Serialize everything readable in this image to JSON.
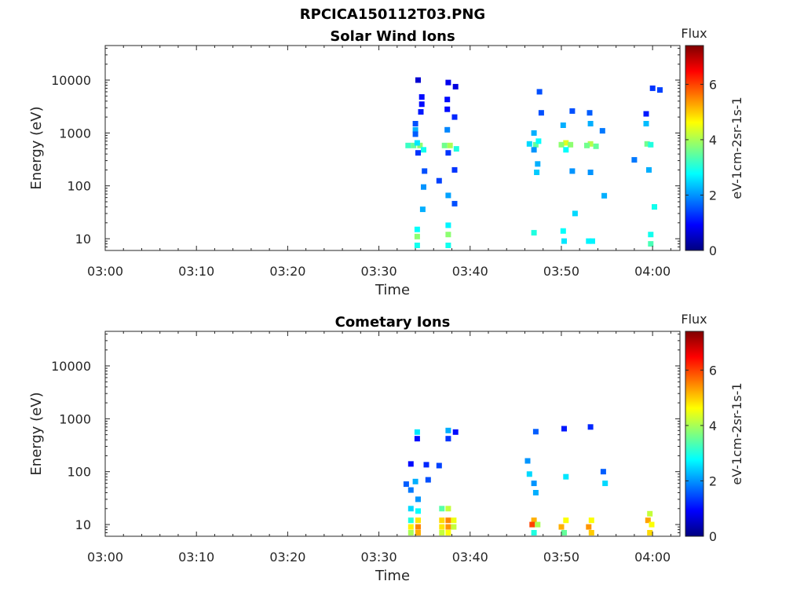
{
  "figure": {
    "title": "RPCICA150112T03.PNG"
  },
  "colors": {
    "colormap": [
      "#00007f",
      "#0000ff",
      "#007fff",
      "#00ffff",
      "#7fff7f",
      "#ffff00",
      "#ff7f00",
      "#ff0000",
      "#7f0000"
    ],
    "axes": "#262626",
    "background": "#ffffff"
  },
  "chart_data": [
    {
      "type": "heatmap",
      "title": "Solar Wind Ions",
      "xlabel": "Time",
      "ylabel": "Energy (eV)",
      "x_ticks": [
        "03:00",
        "03:10",
        "03:20",
        "03:30",
        "03:40",
        "03:50",
        "04:00"
      ],
      "y_ticks": [
        "10",
        "100",
        "1000",
        "10000"
      ],
      "y_scale": "log",
      "xlim_minutes_after_0300": [
        0,
        63
      ],
      "ylim_eV": [
        6,
        45000
      ],
      "colorbar": {
        "title": "Flux",
        "unit": "eV-1cm-2sr-1s-1",
        "ticks": [
          "0",
          "2",
          "4",
          "6"
        ],
        "range": [
          0,
          7.4
        ]
      },
      "cells": [
        {
          "t": 34.3,
          "e": 10000,
          "v": 0.6
        },
        {
          "t": 34.7,
          "e": 4800,
          "v": 1.0
        },
        {
          "t": 34.7,
          "e": 3500,
          "v": 1.0
        },
        {
          "t": 34.6,
          "e": 2500,
          "v": 1.1
        },
        {
          "t": 34.0,
          "e": 1500,
          "v": 1.5
        },
        {
          "t": 34.0,
          "e": 1150,
          "v": 2.2
        },
        {
          "t": 34.0,
          "e": 950,
          "v": 1.6
        },
        {
          "t": 33.2,
          "e": 580,
          "v": 3.2
        },
        {
          "t": 33.8,
          "e": 580,
          "v": 3.5
        },
        {
          "t": 34.5,
          "e": 580,
          "v": 3.8
        },
        {
          "t": 34.2,
          "e": 650,
          "v": 2.6
        },
        {
          "t": 34.9,
          "e": 480,
          "v": 2.9
        },
        {
          "t": 34.3,
          "e": 420,
          "v": 1.3
        },
        {
          "t": 35.0,
          "e": 190,
          "v": 1.5
        },
        {
          "t": 34.9,
          "e": 95,
          "v": 2.0
        },
        {
          "t": 34.8,
          "e": 36,
          "v": 2.2
        },
        {
          "t": 34.2,
          "e": 15,
          "v": 2.8
        },
        {
          "t": 34.2,
          "e": 11,
          "v": 3.8
        },
        {
          "t": 34.2,
          "e": 7.5,
          "v": 2.9
        },
        {
          "t": 37.6,
          "e": 9000,
          "v": 0.8
        },
        {
          "t": 38.4,
          "e": 7500,
          "v": 0.7
        },
        {
          "t": 37.5,
          "e": 4300,
          "v": 1.0
        },
        {
          "t": 37.5,
          "e": 2800,
          "v": 1.0
        },
        {
          "t": 38.3,
          "e": 2000,
          "v": 1.2
        },
        {
          "t": 37.5,
          "e": 1150,
          "v": 1.9
        },
        {
          "t": 37.2,
          "e": 580,
          "v": 3.6
        },
        {
          "t": 37.8,
          "e": 580,
          "v": 4.0
        },
        {
          "t": 38.5,
          "e": 500,
          "v": 3.0
        },
        {
          "t": 37.6,
          "e": 420,
          "v": 1.3
        },
        {
          "t": 38.3,
          "e": 200,
          "v": 1.3
        },
        {
          "t": 36.6,
          "e": 125,
          "v": 1.4
        },
        {
          "t": 37.6,
          "e": 66,
          "v": 2.1
        },
        {
          "t": 38.3,
          "e": 46,
          "v": 1.5
        },
        {
          "t": 37.6,
          "e": 18,
          "v": 2.7
        },
        {
          "t": 37.6,
          "e": 12,
          "v": 3.8
        },
        {
          "t": 37.6,
          "e": 7.5,
          "v": 2.9
        },
        {
          "t": 46.5,
          "e": 620,
          "v": 2.5
        },
        {
          "t": 47.2,
          "e": 600,
          "v": 3.5
        },
        {
          "t": 47.5,
          "e": 700,
          "v": 2.8
        },
        {
          "t": 47.0,
          "e": 1000,
          "v": 2.2
        },
        {
          "t": 47.8,
          "e": 2400,
          "v": 1.5
        },
        {
          "t": 47.6,
          "e": 6000,
          "v": 1.5
        },
        {
          "t": 47.0,
          "e": 480,
          "v": 2.0
        },
        {
          "t": 47.4,
          "e": 260,
          "v": 2.2
        },
        {
          "t": 47.3,
          "e": 180,
          "v": 2.4
        },
        {
          "t": 47.0,
          "e": 13,
          "v": 3.0
        },
        {
          "t": 50.2,
          "e": 1400,
          "v": 2.2
        },
        {
          "t": 50.5,
          "e": 650,
          "v": 4.4
        },
        {
          "t": 50.0,
          "e": 600,
          "v": 3.8
        },
        {
          "t": 51.0,
          "e": 600,
          "v": 3.8
        },
        {
          "t": 50.5,
          "e": 480,
          "v": 2.8
        },
        {
          "t": 51.2,
          "e": 2600,
          "v": 1.5
        },
        {
          "t": 51.2,
          "e": 190,
          "v": 2.0
        },
        {
          "t": 50.2,
          "e": 14,
          "v": 2.8
        },
        {
          "t": 50.3,
          "e": 9,
          "v": 2.6
        },
        {
          "t": 51.5,
          "e": 30,
          "v": 2.5
        },
        {
          "t": 53.2,
          "e": 1500,
          "v": 2.2
        },
        {
          "t": 53.2,
          "e": 620,
          "v": 4.1
        },
        {
          "t": 52.8,
          "e": 580,
          "v": 3.6
        },
        {
          "t": 53.8,
          "e": 560,
          "v": 3.5
        },
        {
          "t": 53.1,
          "e": 2400,
          "v": 1.6
        },
        {
          "t": 54.5,
          "e": 1100,
          "v": 1.8
        },
        {
          "t": 53.2,
          "e": 180,
          "v": 2.0
        },
        {
          "t": 53.0,
          "e": 9,
          "v": 2.7
        },
        {
          "t": 53.4,
          "e": 9,
          "v": 2.7
        },
        {
          "t": 54.7,
          "e": 65,
          "v": 2.2
        },
        {
          "t": 59.3,
          "e": 1500,
          "v": 2.3
        },
        {
          "t": 59.4,
          "e": 620,
          "v": 3.6
        },
        {
          "t": 59.8,
          "e": 600,
          "v": 3.0
        },
        {
          "t": 59.3,
          "e": 2300,
          "v": 1.1
        },
        {
          "t": 60.0,
          "e": 7000,
          "v": 1.3
        },
        {
          "t": 60.8,
          "e": 6500,
          "v": 1.4
        },
        {
          "t": 58.0,
          "e": 310,
          "v": 1.8
        },
        {
          "t": 59.6,
          "e": 200,
          "v": 2.2
        },
        {
          "t": 60.2,
          "e": 40,
          "v": 2.9
        },
        {
          "t": 59.8,
          "e": 12,
          "v": 2.9
        },
        {
          "t": 59.8,
          "e": 8,
          "v": 3.3
        }
      ]
    },
    {
      "type": "heatmap",
      "title": "Cometary Ions",
      "xlabel": "Time",
      "ylabel": "Energy (eV)",
      "x_ticks": [
        "03:00",
        "03:10",
        "03:20",
        "03:30",
        "03:40",
        "03:50",
        "04:00"
      ],
      "y_ticks": [
        "10",
        "100",
        "1000",
        "10000"
      ],
      "y_scale": "log",
      "xlim_minutes_after_0300": [
        0,
        63
      ],
      "ylim_eV": [
        6,
        45000
      ],
      "colorbar": {
        "title": "Flux",
        "unit": "eV-1cm-2sr-1s-1",
        "ticks": [
          "0",
          "2",
          "4",
          "6"
        ],
        "range": [
          0,
          7.4
        ]
      },
      "cells": [
        {
          "t": 34.2,
          "e": 560,
          "v": 2.6
        },
        {
          "t": 34.2,
          "e": 420,
          "v": 1.0
        },
        {
          "t": 33.5,
          "e": 140,
          "v": 1.0
        },
        {
          "t": 35.2,
          "e": 135,
          "v": 1.2
        },
        {
          "t": 33.0,
          "e": 58,
          "v": 1.6
        },
        {
          "t": 34.0,
          "e": 65,
          "v": 2.2
        },
        {
          "t": 35.4,
          "e": 70,
          "v": 1.5
        },
        {
          "t": 33.5,
          "e": 45,
          "v": 1.8
        },
        {
          "t": 34.3,
          "e": 30,
          "v": 2.0
        },
        {
          "t": 33.5,
          "e": 20,
          "v": 2.5
        },
        {
          "t": 34.3,
          "e": 18,
          "v": 2.8
        },
        {
          "t": 33.5,
          "e": 12,
          "v": 3.0
        },
        {
          "t": 34.3,
          "e": 12,
          "v": 4.8
        },
        {
          "t": 33.5,
          "e": 9,
          "v": 4.7
        },
        {
          "t": 34.3,
          "e": 9,
          "v": 5.5
        },
        {
          "t": 33.5,
          "e": 7,
          "v": 4.0
        },
        {
          "t": 34.3,
          "e": 7,
          "v": 5.2
        },
        {
          "t": 37.6,
          "e": 600,
          "v": 2.2
        },
        {
          "t": 38.4,
          "e": 560,
          "v": 1.0
        },
        {
          "t": 37.6,
          "e": 420,
          "v": 1.3
        },
        {
          "t": 36.6,
          "e": 130,
          "v": 1.4
        },
        {
          "t": 37.6,
          "e": 20,
          "v": 4.2
        },
        {
          "t": 36.9,
          "e": 20,
          "v": 3.4
        },
        {
          "t": 37.6,
          "e": 12,
          "v": 5.5
        },
        {
          "t": 36.9,
          "e": 12,
          "v": 4.9
        },
        {
          "t": 38.2,
          "e": 12,
          "v": 4.5
        },
        {
          "t": 37.6,
          "e": 9,
          "v": 5.4
        },
        {
          "t": 36.9,
          "e": 9,
          "v": 4.8
        },
        {
          "t": 38.2,
          "e": 9,
          "v": 4.2
        },
        {
          "t": 37.6,
          "e": 7,
          "v": 4.6
        },
        {
          "t": 36.9,
          "e": 7,
          "v": 4.2
        },
        {
          "t": 46.3,
          "e": 160,
          "v": 2.0
        },
        {
          "t": 46.5,
          "e": 90,
          "v": 2.5
        },
        {
          "t": 47.0,
          "e": 60,
          "v": 2.0
        },
        {
          "t": 47.2,
          "e": 40,
          "v": 2.2
        },
        {
          "t": 47.2,
          "e": 570,
          "v": 1.6
        },
        {
          "t": 47.0,
          "e": 12,
          "v": 5.2
        },
        {
          "t": 46.8,
          "e": 10,
          "v": 6.0
        },
        {
          "t": 47.4,
          "e": 10,
          "v": 4.0
        },
        {
          "t": 47.0,
          "e": 7,
          "v": 3.0
        },
        {
          "t": 50.3,
          "e": 650,
          "v": 1.1
        },
        {
          "t": 50.5,
          "e": 12,
          "v": 4.6
        },
        {
          "t": 50.0,
          "e": 9,
          "v": 5.2
        },
        {
          "t": 50.3,
          "e": 7,
          "v": 3.5
        },
        {
          "t": 50.5,
          "e": 80,
          "v": 2.6
        },
        {
          "t": 53.2,
          "e": 700,
          "v": 1.2
        },
        {
          "t": 53.3,
          "e": 12,
          "v": 4.6
        },
        {
          "t": 53.0,
          "e": 9,
          "v": 5.4
        },
        {
          "t": 53.3,
          "e": 7,
          "v": 5.0
        },
        {
          "t": 54.6,
          "e": 100,
          "v": 1.6
        },
        {
          "t": 54.8,
          "e": 60,
          "v": 2.5
        },
        {
          "t": 59.7,
          "e": 16,
          "v": 4.2
        },
        {
          "t": 59.5,
          "e": 12,
          "v": 5.3
        },
        {
          "t": 59.9,
          "e": 10,
          "v": 4.6
        },
        {
          "t": 59.7,
          "e": 7,
          "v": 4.9
        }
      ]
    }
  ]
}
